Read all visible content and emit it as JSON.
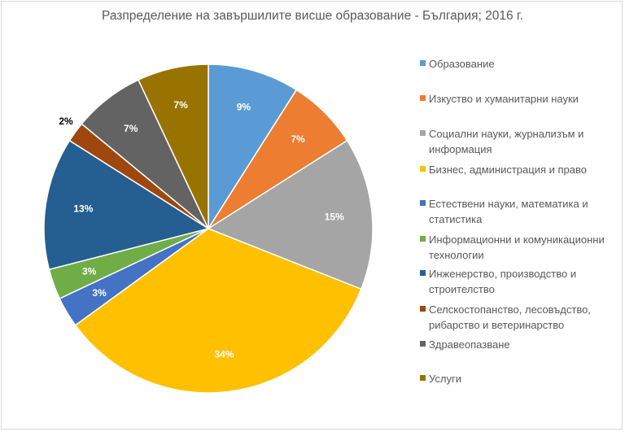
{
  "chart_data": {
    "type": "pie",
    "title": "Разпределение на завършилите висше образование - България; 2016 г.",
    "legend_position": "right",
    "categories": [
      "Образование",
      "Изкуство и хуманитарни науки",
      "Социални науки, журнализъм и информация",
      "Бизнес, администрация и право",
      "Естествени науки, математика и статистика",
      "Информационни и комуникационни технологии",
      "Инженерство, производство и строителство",
      "Селскостопанство, лесовъдство, рибарство и ветеринарство",
      "Здравеопазване",
      "Услуги"
    ],
    "values": [
      9,
      7,
      15,
      34,
      3,
      3,
      13,
      2,
      7,
      7
    ],
    "labels": [
      "9%",
      "7%",
      "15%",
      "34%",
      "3%",
      "3%",
      "13%",
      "2%",
      "7%",
      "7%"
    ],
    "colors": [
      "#5B9BD5",
      "#ED7D31",
      "#A5A5A5",
      "#FFC000",
      "#4472C4",
      "#70AD47",
      "#255E91",
      "#9E480E",
      "#636363",
      "#997300"
    ]
  }
}
